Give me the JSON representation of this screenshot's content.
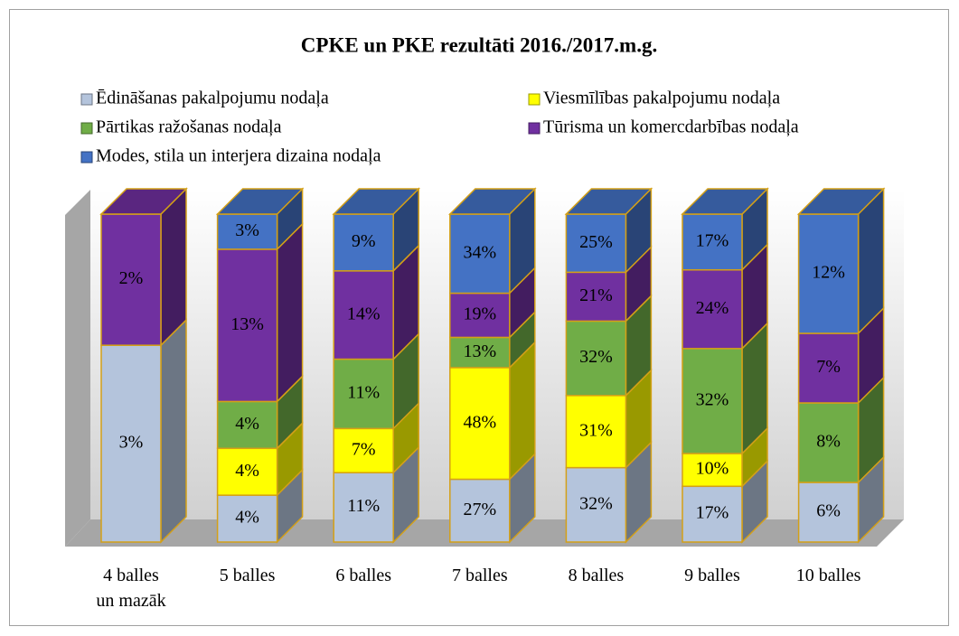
{
  "chart_data": {
    "type": "stacked3d",
    "title": "CPKE un PKE rezultāti 2016./2017.m.g.",
    "categories": [
      "4 balles\nun mazāk",
      "5 balles",
      "6 balles",
      "7 balles",
      "8 balles",
      "9 balles",
      "10 balles"
    ],
    "series": [
      {
        "name": "Ēdināšanas pakalpojumu nodaļa",
        "color": "#b4c4dc",
        "values": [
          3,
          4,
          11,
          27,
          32,
          17,
          6
        ],
        "value_labels": [
          "3%",
          "4%",
          "11%",
          "27%",
          "32%",
          "17%",
          "6%"
        ]
      },
      {
        "name": "Viesmīlības pakalpojumu nodaļa",
        "color": "#ffff00",
        "values": [
          null,
          4,
          7,
          48,
          31,
          10,
          null
        ],
        "value_labels": [
          null,
          "4%",
          "7%",
          "48%",
          "31%",
          "10%",
          null
        ]
      },
      {
        "name": "Pārtikas ražošanas nodaļa",
        "color": "#70ad47",
        "values": [
          null,
          4,
          11,
          13,
          32,
          32,
          8
        ],
        "value_labels": [
          null,
          "4%",
          "11%",
          "13%",
          "32%",
          "32%",
          "8%"
        ]
      },
      {
        "name": "Tūrisma un komercdarbības nodaļa",
        "color": "#7030a0",
        "values": [
          2,
          13,
          14,
          19,
          21,
          24,
          7
        ],
        "value_labels": [
          "2%",
          "13%",
          "14%",
          "19%",
          "21%",
          "24%",
          "7%"
        ]
      },
      {
        "name": "Modes, stila un interjera dizaina nodaļa",
        "color": "#4472c4",
        "values": [
          null,
          3,
          9,
          34,
          25,
          17,
          12
        ],
        "value_labels": [
          null,
          "3%",
          "9%",
          "34%",
          "25%",
          "17%",
          "12%"
        ]
      }
    ]
  }
}
